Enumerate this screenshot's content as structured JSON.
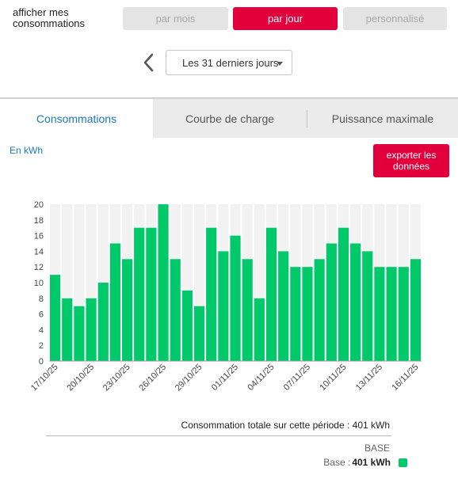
{
  "header": {
    "label": "afficher mes consommations",
    "period_buttons": [
      "par mois",
      "par jour",
      "personnalisé"
    ],
    "active_period": "par jour",
    "range_value": "Les 31 derniers jours"
  },
  "tabs": [
    "Consommations",
    "Courbe de charge",
    "Puissance maximale"
  ],
  "active_tab": "Consommations",
  "unit_label": "En kWh",
  "export_label": "exporter les données",
  "colors": {
    "accent": "#e2003c",
    "bar": "#00c96a",
    "tab_active_text": "#1a79b7"
  },
  "chart_data": {
    "type": "bar",
    "categories": [
      "17/10/25",
      "18/10/25",
      "19/10/25",
      "20/10/25",
      "21/10/25",
      "22/10/25",
      "23/10/25",
      "24/10/25",
      "25/10/25",
      "26/10/25",
      "27/10/25",
      "28/10/25",
      "29/10/25",
      "30/10/25",
      "31/10/25",
      "01/11/25",
      "02/11/25",
      "03/11/25",
      "04/11/25",
      "05/11/25",
      "06/11/25",
      "07/11/25",
      "08/11/25",
      "09/11/25",
      "10/11/25",
      "11/11/25",
      "12/11/25",
      "13/11/25",
      "14/11/25",
      "15/11/25",
      "16/11/25"
    ],
    "tick_labels": [
      "17/10/25",
      "20/10/25",
      "23/10/25",
      "26/10/25",
      "29/10/25",
      "01/11/25",
      "04/11/25",
      "07/11/25",
      "10/11/25",
      "13/11/25",
      "16/11/25"
    ],
    "values": [
      11,
      8,
      7,
      8,
      10,
      15,
      13,
      17,
      17,
      20,
      13,
      9,
      7,
      17,
      14,
      16,
      13,
      8,
      17,
      14,
      12,
      12,
      13,
      15,
      17,
      15,
      14,
      12,
      12,
      12,
      13
    ],
    "y_ticks": [
      0,
      2,
      4,
      6,
      8,
      10,
      12,
      14,
      16,
      18,
      20
    ],
    "ylim": [
      0,
      20
    ],
    "grid": false
  },
  "summary": {
    "total_text": "Consommation totale sur cette période : 401 kWh",
    "legend_category": "BASE",
    "legend_label": "Base :",
    "legend_value": "401 kWh"
  }
}
